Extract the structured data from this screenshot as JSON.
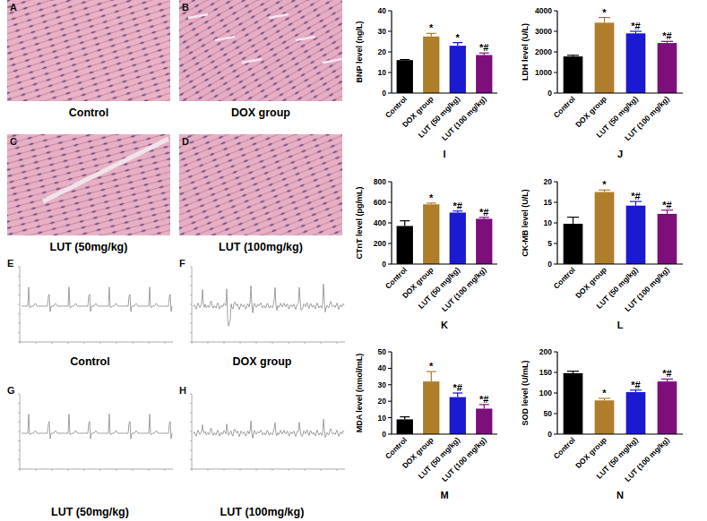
{
  "histology_panels": [
    {
      "letter": "A",
      "label": "Control"
    },
    {
      "letter": "B",
      "label": "DOX group"
    },
    {
      "letter": "C",
      "label": "LUT (50mg/kg)"
    },
    {
      "letter": "D",
      "label": "LUT (100mg/kg)"
    }
  ],
  "ecg_panels": [
    {
      "letter": "E",
      "label": "Control"
    },
    {
      "letter": "F",
      "label": "DOX group"
    },
    {
      "letter": "G",
      "label": "LUT (50mg/kg)"
    },
    {
      "letter": "H",
      "label": "LUT (100mg/kg)"
    }
  ],
  "chart_data": [
    {
      "type": "bar",
      "title": "I",
      "y_label": "BNP level (ng/L)",
      "categories": [
        "Control",
        "DOX group",
        "LUT (50 mg/kg)",
        "LUT (100 mg/kg)"
      ],
      "values": [
        16,
        27.5,
        23,
        18.5
      ],
      "errors": [
        0.3,
        1.5,
        1.5,
        1
      ],
      "annotations": [
        null,
        "*",
        "*",
        "*#"
      ],
      "colors": [
        "#000000",
        "#b07d2b",
        "#1a1ad0",
        "#7d0f7d"
      ],
      "ylim": [
        0,
        40
      ],
      "yticks": [
        0,
        10,
        20,
        30,
        40
      ]
    },
    {
      "type": "bar",
      "title": "J",
      "y_label": "LDH level (U/L)",
      "categories": [
        "Control",
        "DOX group",
        "LUT (50 mg/kg)",
        "LUT (100 mg/kg)"
      ],
      "values": [
        1780,
        3420,
        2900,
        2430
      ],
      "errors": [
        60,
        250,
        100,
        80
      ],
      "annotations": [
        null,
        "*",
        "*#",
        "*#"
      ],
      "colors": [
        "#000000",
        "#b07d2b",
        "#1a1ad0",
        "#7d0f7d"
      ],
      "ylim": [
        0,
        4000
      ],
      "yticks": [
        0,
        1000,
        2000,
        3000,
        4000
      ]
    },
    {
      "type": "bar",
      "title": "K",
      "y_label": "CTnT level (pg/mL)",
      "categories": [
        "Control",
        "DOX group",
        "LUT (50 mg/kg)",
        "LUT (100 mg/kg)"
      ],
      "values": [
        370,
        580,
        500,
        440
      ],
      "errors": [
        50,
        12,
        15,
        15
      ],
      "annotations": [
        null,
        "*",
        "*#",
        "*#"
      ],
      "colors": [
        "#000000",
        "#b07d2b",
        "#1a1ad0",
        "#7d0f7d"
      ],
      "ylim": [
        0,
        800
      ],
      "yticks": [
        0,
        200,
        400,
        600,
        800
      ]
    },
    {
      "type": "bar",
      "title": "L",
      "y_label": "CK-MB level (U/L)",
      "categories": [
        "Control",
        "DOX group",
        "LUT (50 mg/kg)",
        "LUT (100 mg/kg)"
      ],
      "values": [
        9.8,
        17.5,
        14.2,
        12.2
      ],
      "errors": [
        1.6,
        0.5,
        1,
        0.9
      ],
      "annotations": [
        null,
        "*",
        "*#",
        "*#"
      ],
      "colors": [
        "#000000",
        "#b07d2b",
        "#1a1ad0",
        "#7d0f7d"
      ],
      "ylim": [
        0,
        20
      ],
      "yticks": [
        0,
        5,
        10,
        15,
        20
      ]
    },
    {
      "type": "bar",
      "title": "M",
      "y_label": "MDA level (nmol/mL)",
      "categories": [
        "Control",
        "DOX group",
        "LUT (50 mg/kg)",
        "LUT (100 mg/kg)"
      ],
      "values": [
        9,
        32,
        22.5,
        15.5
      ],
      "errors": [
        1.5,
        6,
        2.5,
        2.5
      ],
      "annotations": [
        null,
        "*",
        "*#",
        "*#"
      ],
      "colors": [
        "#000000",
        "#b07d2b",
        "#1a1ad0",
        "#7d0f7d"
      ],
      "ylim": [
        0,
        50
      ],
      "yticks": [
        0,
        10,
        20,
        30,
        40,
        50
      ]
    },
    {
      "type": "bar",
      "title": "N",
      "y_label": "SOD level (U/mL)",
      "categories": [
        "Control",
        "DOX group",
        "LUT (50 mg/kg)",
        "LUT (100 mg/kg)"
      ],
      "values": [
        148,
        82,
        102,
        128
      ],
      "errors": [
        5,
        5,
        5,
        6
      ],
      "annotations": [
        null,
        "*",
        "*#",
        "*#"
      ],
      "colors": [
        "#000000",
        "#b07d2b",
        "#1a1ad0",
        "#7d0f7d"
      ],
      "ylim": [
        0,
        200
      ],
      "yticks": [
        0,
        50,
        100,
        150,
        200
      ]
    }
  ]
}
